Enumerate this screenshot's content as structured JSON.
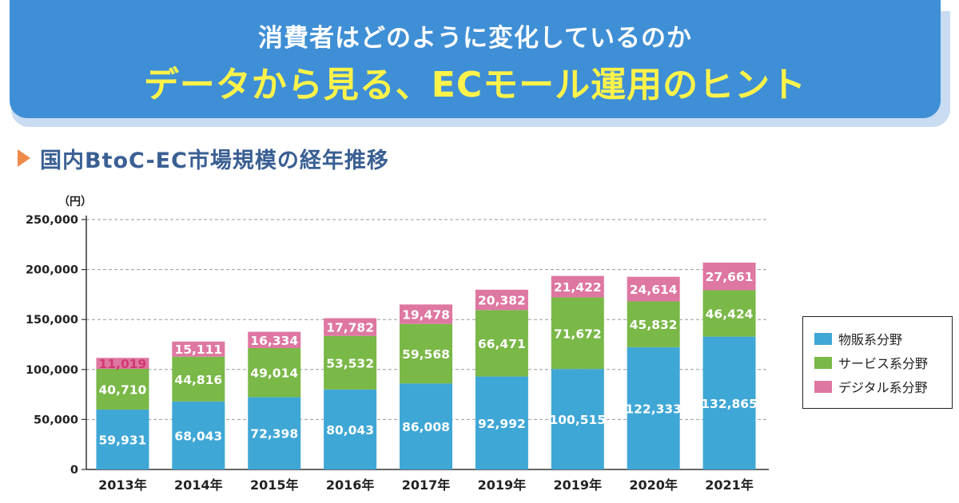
{
  "banner": {
    "subtitle": "消費者はどのように変化しているのか",
    "title": "データから見る、ECモール運用のヒント"
  },
  "section": {
    "title": "国内BtoC-EC市場規模の経年推移"
  },
  "colors": {
    "banner": "#3f8fd6",
    "title_yellow": "#fff34a",
    "goods": "#3fa7d6",
    "services": "#7ab848",
    "digital": "#de77a2",
    "accent_triangle": "#ee8a4a"
  },
  "chart_data": {
    "type": "bar",
    "stacked": true,
    "y_unit": "（円）",
    "ylim": [
      0,
      250000
    ],
    "yticks": [
      0,
      50000,
      100000,
      150000,
      200000,
      250000
    ],
    "ytick_labels": [
      "0",
      "50,000",
      "100,000",
      "150,000",
      "200,000",
      "250,000"
    ],
    "grid": true,
    "legend_position": "right",
    "categories": [
      "2013年",
      "2014年",
      "2015年",
      "2016年",
      "2017年",
      "2019年",
      "2019年",
      "2020年",
      "2021年"
    ],
    "series": [
      {
        "name": "物販系分野",
        "color": "#3fa7d6",
        "values": [
          59931,
          68043,
          72398,
          80043,
          86008,
          92992,
          100515,
          122333,
          132865
        ],
        "labels": [
          "59,931",
          "68,043",
          "72,398",
          "80,043",
          "86,008",
          "92,992",
          "100,515",
          "122,333",
          "132,865"
        ]
      },
      {
        "name": "サービス系分野",
        "color": "#7ab848",
        "values": [
          40710,
          44816,
          49014,
          53532,
          59568,
          66471,
          71672,
          45832,
          46424
        ],
        "labels": [
          "40,710",
          "44,816",
          "49,014",
          "53,532",
          "59,568",
          "66,471",
          "71,672",
          "45,832",
          "46,424"
        ]
      },
      {
        "name": "デジタル系分野",
        "color": "#de77a2",
        "values": [
          11019,
          15111,
          16334,
          17782,
          19478,
          20382,
          21422,
          24614,
          27661
        ],
        "labels": [
          "11,019",
          "15,111",
          "16,334",
          "17,782",
          "19,478",
          "20,382",
          "21,422",
          "24,614",
          "27,661"
        ]
      }
    ]
  }
}
